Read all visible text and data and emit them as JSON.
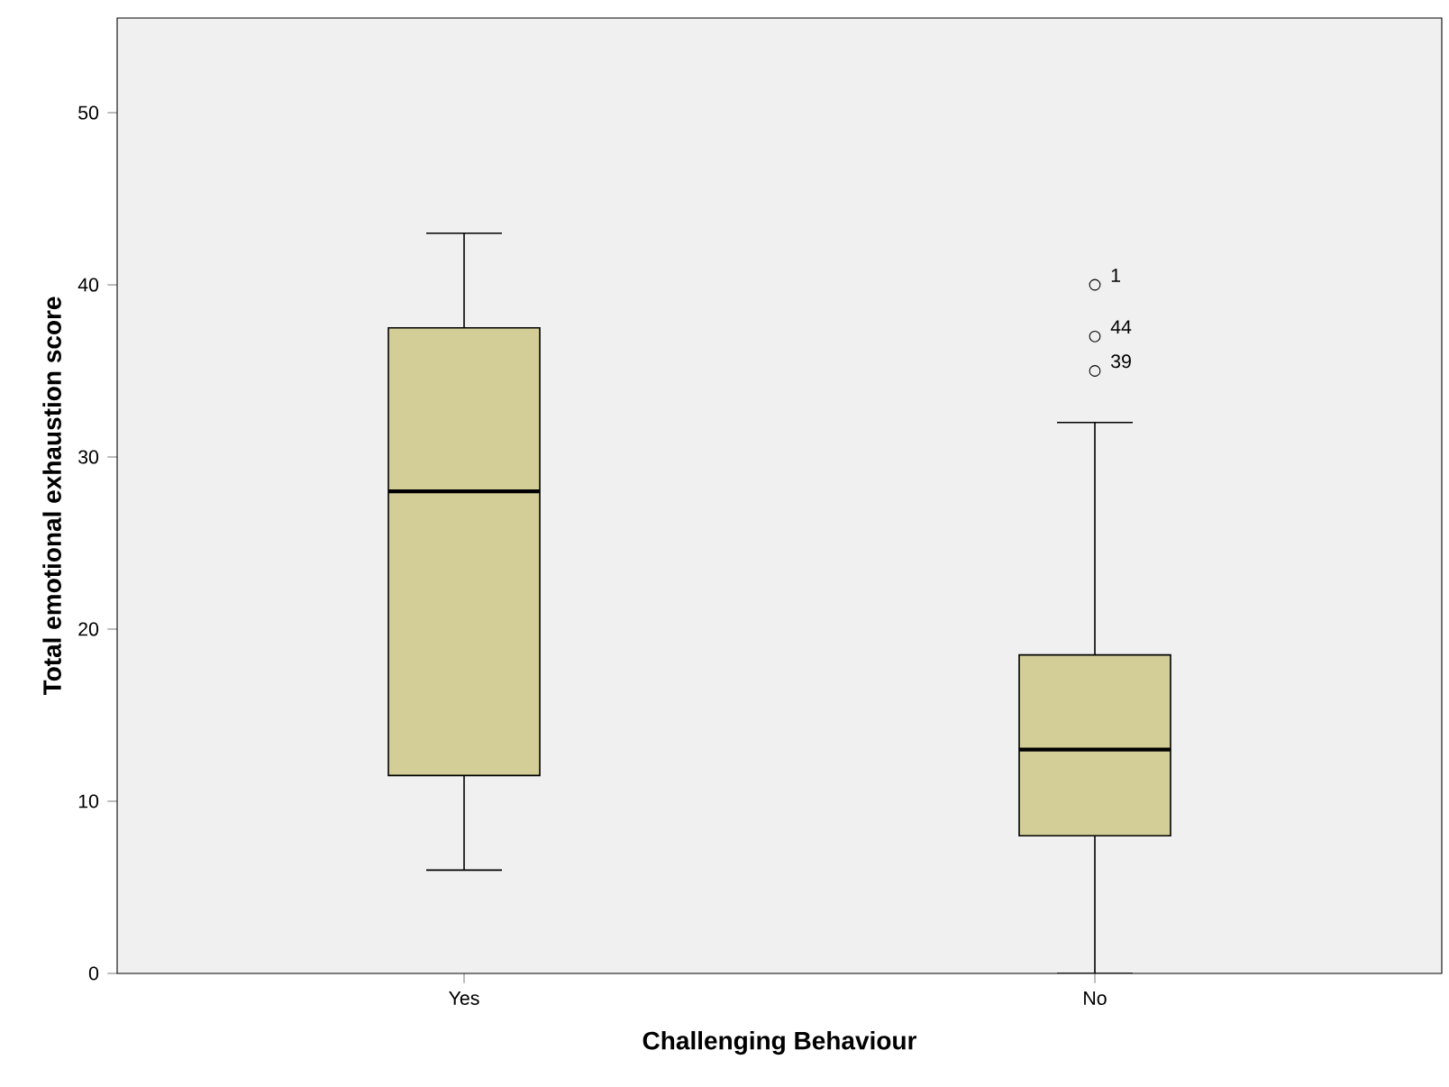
{
  "chart_data": {
    "type": "box",
    "xlabel": "Challenging Behaviour",
    "ylabel": "Total emotional exhaustion score",
    "categories": [
      "Yes",
      "No"
    ],
    "series": [
      {
        "color": "#d3ce98",
        "boxes": [
          {
            "low": 6,
            "q1": 11.5,
            "median": 28,
            "q3": 37.5,
            "high": 43
          },
          {
            "low": 0,
            "q1": 8,
            "median": 13,
            "q3": 18.5,
            "high": 32,
            "outliers": [
              40,
              37,
              35
            ]
          }
        ]
      }
    ],
    "ylim": [
      0,
      55.5
    ],
    "yticks": [
      0,
      10,
      20,
      30,
      40,
      50
    ],
    "grid": false,
    "marker": "circle",
    "annotations": [
      "1",
      "44",
      "39"
    ]
  }
}
